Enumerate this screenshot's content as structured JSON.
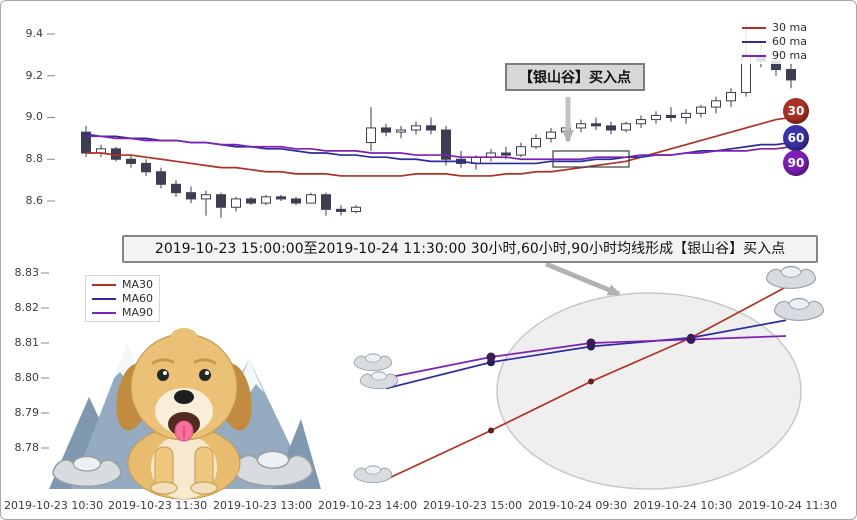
{
  "colors": {
    "ma30": "#b03024",
    "ma60": "#2f2b9c",
    "ma90": "#7e22b5",
    "candle": "#3e3e52",
    "badge30": "#a93226",
    "badge60": "#3a33a6",
    "badge90": "#7d1fb5"
  },
  "axis": {
    "top_yticks": [
      "9.4",
      "9.2",
      "9.0",
      "8.8",
      "8.6"
    ],
    "bottom_yticks": [
      "8.83",
      "8.82",
      "8.81",
      "8.80",
      "8.79",
      "8.78"
    ],
    "xticks": [
      "2019-10-23 10:30",
      "2019-10-23 11:30",
      "2019-10-23 13:00",
      "2019-10-23 14:00",
      "2019-10-23 15:00",
      "2019-10-24 09:30",
      "2019-10-24 10:30",
      "2019-10-24 11:30"
    ]
  },
  "texts": {
    "top_legend": [
      "30 ma",
      "60 ma",
      "90 ma"
    ],
    "bottom_legend": [
      "MA30",
      "MA60",
      "MA90"
    ],
    "badges": [
      "30",
      "60",
      "90"
    ],
    "buy_point_callout": "【银山谷】买入点",
    "banner": "2019-10-23 15:00:00至2019-10-24 11:30:00 30小时,60小时,90小时均线形成【银山谷】买入点"
  },
  "chart_data": [
    {
      "type": "candlestick",
      "ylim": [
        8.5,
        9.5
      ],
      "yticks": [
        9.4,
        9.2,
        9.0,
        8.8,
        8.6
      ],
      "legend_position": "top-right",
      "annotation": "【银山谷】买入点",
      "candles_ohlc": [
        [
          8.93,
          8.96,
          8.81,
          8.83
        ],
        [
          8.83,
          8.87,
          8.81,
          8.85
        ],
        [
          8.85,
          8.86,
          8.79,
          8.8
        ],
        [
          8.8,
          8.82,
          8.76,
          8.78
        ],
        [
          8.78,
          8.8,
          8.72,
          8.74
        ],
        [
          8.74,
          8.76,
          8.66,
          8.68
        ],
        [
          8.68,
          8.7,
          8.62,
          8.64
        ],
        [
          8.64,
          8.67,
          8.59,
          8.61
        ],
        [
          8.61,
          8.65,
          8.53,
          8.63
        ],
        [
          8.63,
          8.64,
          8.52,
          8.57
        ],
        [
          8.57,
          8.62,
          8.55,
          8.61
        ],
        [
          8.61,
          8.62,
          8.58,
          8.59
        ],
        [
          8.59,
          8.63,
          8.58,
          8.62
        ],
        [
          8.62,
          8.63,
          8.6,
          8.61
        ],
        [
          8.61,
          8.62,
          8.58,
          8.59
        ],
        [
          8.59,
          8.64,
          8.59,
          8.63
        ],
        [
          8.63,
          8.64,
          8.53,
          8.56
        ],
        [
          8.56,
          8.58,
          8.53,
          8.55
        ],
        [
          8.55,
          8.58,
          8.54,
          8.57
        ],
        [
          8.88,
          9.05,
          8.84,
          8.95
        ],
        [
          8.95,
          8.97,
          8.91,
          8.93
        ],
        [
          8.93,
          8.96,
          8.9,
          8.94
        ],
        [
          8.94,
          8.98,
          8.92,
          8.96
        ],
        [
          8.96,
          9.0,
          8.92,
          8.94
        ],
        [
          8.94,
          8.96,
          8.77,
          8.8
        ],
        [
          8.8,
          8.84,
          8.76,
          8.78
        ],
        [
          8.78,
          8.82,
          8.75,
          8.81
        ],
        [
          8.81,
          8.85,
          8.79,
          8.83
        ],
        [
          8.83,
          8.86,
          8.8,
          8.82
        ],
        [
          8.82,
          8.88,
          8.81,
          8.86
        ],
        [
          8.86,
          8.92,
          8.85,
          8.9
        ],
        [
          8.9,
          8.95,
          8.88,
          8.93
        ],
        [
          8.93,
          8.97,
          8.91,
          8.95
        ],
        [
          8.95,
          8.99,
          8.93,
          8.97
        ],
        [
          8.97,
          9.0,
          8.94,
          8.96
        ],
        [
          8.96,
          8.98,
          8.92,
          8.94
        ],
        [
          8.94,
          8.98,
          8.93,
          8.97
        ],
        [
          8.97,
          9.01,
          8.95,
          8.99
        ],
        [
          8.99,
          9.03,
          8.97,
          9.01
        ],
        [
          9.01,
          9.05,
          8.98,
          9.0
        ],
        [
          9.0,
          9.04,
          8.97,
          9.02
        ],
        [
          9.02,
          9.06,
          9.0,
          9.05
        ],
        [
          9.05,
          9.1,
          9.02,
          9.08
        ],
        [
          9.08,
          9.14,
          9.05,
          9.12
        ],
        [
          9.12,
          9.45,
          9.1,
          9.3
        ],
        [
          9.3,
          9.36,
          9.24,
          9.27
        ],
        [
          9.27,
          9.31,
          9.2,
          9.23
        ],
        [
          9.23,
          9.26,
          9.14,
          9.18
        ]
      ],
      "series": [
        {
          "name": "30 ma",
          "color": "#b03024",
          "values": [
            8.83,
            8.83,
            8.82,
            8.82,
            8.81,
            8.8,
            8.79,
            8.78,
            8.77,
            8.76,
            8.76,
            8.75,
            8.74,
            8.74,
            8.73,
            8.73,
            8.73,
            8.72,
            8.72,
            8.72,
            8.72,
            8.72,
            8.73,
            8.73,
            8.73,
            8.72,
            8.72,
            8.72,
            8.73,
            8.73,
            8.74,
            8.74,
            8.75,
            8.76,
            8.77,
            8.78,
            8.79,
            8.81,
            8.83,
            8.85,
            8.87,
            8.89,
            8.91,
            8.93,
            8.95,
            8.97,
            8.99,
            9.0
          ]
        },
        {
          "name": "60 ma",
          "color": "#2f2b9c",
          "values": [
            8.92,
            8.91,
            8.91,
            8.9,
            8.9,
            8.89,
            8.89,
            8.88,
            8.88,
            8.87,
            8.86,
            8.86,
            8.85,
            8.85,
            8.84,
            8.83,
            8.83,
            8.82,
            8.82,
            8.81,
            8.81,
            8.8,
            8.8,
            8.79,
            8.79,
            8.79,
            8.78,
            8.78,
            8.78,
            8.78,
            8.78,
            8.79,
            8.79,
            8.79,
            8.8,
            8.8,
            8.81,
            8.81,
            8.82,
            8.82,
            8.83,
            8.84,
            8.84,
            8.85,
            8.86,
            8.87,
            8.87,
            8.88
          ]
        },
        {
          "name": "90 ma",
          "color": "#7e22b5",
          "values": [
            8.91,
            8.91,
            8.9,
            8.9,
            8.89,
            8.89,
            8.89,
            8.88,
            8.88,
            8.87,
            8.87,
            8.86,
            8.86,
            8.86,
            8.85,
            8.85,
            8.84,
            8.84,
            8.84,
            8.83,
            8.83,
            8.83,
            8.82,
            8.82,
            8.82,
            8.81,
            8.81,
            8.81,
            8.81,
            8.8,
            8.8,
            8.8,
            8.8,
            8.8,
            8.81,
            8.81,
            8.81,
            8.82,
            8.82,
            8.82,
            8.83,
            8.83,
            8.84,
            8.84,
            8.84,
            8.85,
            8.85,
            8.86
          ]
        }
      ],
      "end_badges": [
        "30",
        "60",
        "90"
      ]
    },
    {
      "type": "line",
      "x": [
        "2019-10-23 14:00",
        "2019-10-23 15:00",
        "2019-10-24 09:30",
        "2019-10-24 10:30",
        "2019-10-24 11:30"
      ],
      "series": [
        {
          "name": "MA30",
          "color": "#b03024",
          "values": [
            8.771,
            8.785,
            8.799,
            8.8115,
            8.826
          ]
        },
        {
          "name": "MA60",
          "color": "#2f2b9c",
          "values": [
            8.797,
            8.8045,
            8.809,
            8.8115,
            8.8165
          ]
        },
        {
          "name": "MA90",
          "color": "#7e22b5",
          "values": [
            8.8,
            8.806,
            8.81,
            8.811,
            8.812
          ]
        }
      ],
      "ylim": [
        8.768,
        8.834
      ],
      "yticks": [
        8.83,
        8.82,
        8.81,
        8.8,
        8.79,
        8.78
      ],
      "xticks_full_axis": [
        "2019-10-23 10:30",
        "2019-10-23 11:30",
        "2019-10-23 13:00",
        "2019-10-23 14:00",
        "2019-10-23 15:00",
        "2019-10-24 09:30",
        "2019-10-24 10:30",
        "2019-10-24 11:30"
      ],
      "legend_position": "top-left",
      "highlight": "gray ellipse around MA crossing area (silver valley buy point)"
    }
  ]
}
